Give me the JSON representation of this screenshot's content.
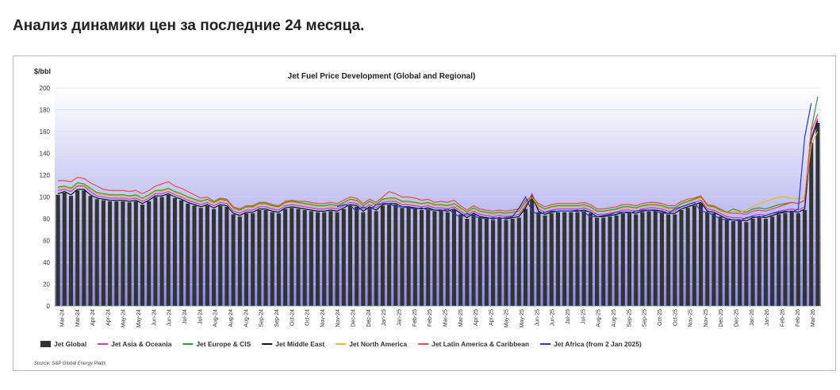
{
  "heading": "Анализ динамики цен за последние 24 месяца.",
  "source": "Source: S&P Global Energy Platts",
  "chart_data": {
    "type": "bar",
    "title": "Jet Fuel Price Development (Global and Regional)",
    "ylabel": "$/bbl",
    "xlabel": "",
    "ylim": [
      0,
      200
    ],
    "yticks": [
      0,
      20,
      40,
      60,
      80,
      100,
      120,
      140,
      160,
      180,
      200
    ],
    "grid": true,
    "legend_position": "bottom",
    "x_tick_labels": [
      "Mar-24",
      "Mar-24",
      "Apr-24",
      "Apr-24",
      "May-24",
      "May-24",
      "Jun-24",
      "Jun-24",
      "Jul-24",
      "Jul-24",
      "Aug-24",
      "Aug-24",
      "Aug-24",
      "Sep-24",
      "Sep-24",
      "Oct-24",
      "Oct-24",
      "Nov-24",
      "Nov-24",
      "Dec-24",
      "Dec-24",
      "Jan-25",
      "Jan-25",
      "Feb-25",
      "Feb-25",
      "Mar-25",
      "Mar-25",
      "Apr-25",
      "Apr-25",
      "May-25",
      "May-25",
      "Jun-25",
      "Jun-25",
      "Jul-25",
      "Jul-25",
      "Aug-25",
      "Aug-25",
      "Sep-25",
      "Sep-25",
      "Oct-25",
      "Oct-25",
      "Nov-25",
      "Nov-25",
      "Dec-25",
      "Dec-25",
      "Jan-26",
      "Jan-26",
      "Feb-26",
      "Feb-26",
      "Mar-26"
    ],
    "series": [
      {
        "name": "Jet Global",
        "kind": "bar",
        "color": "#333333",
        "values": [
          102,
          104,
          101,
          106,
          106,
          101,
          98,
          97,
          96,
          96,
          96,
          95,
          96,
          93,
          96,
          100,
          100,
          102,
          99,
          97,
          94,
          92,
          90,
          92,
          89,
          92,
          91,
          84,
          82,
          85,
          85,
          88,
          88,
          86,
          85,
          89,
          90,
          89,
          88,
          87,
          86,
          86,
          87,
          86,
          89,
          92,
          91,
          86,
          90,
          87,
          92,
          93,
          93,
          90,
          90,
          89,
          88,
          89,
          87,
          87,
          86,
          88,
          84,
          80,
          84,
          81,
          80,
          79,
          80,
          79,
          80,
          81,
          89,
          100,
          86,
          83,
          85,
          86,
          86,
          86,
          86,
          87,
          85,
          81,
          81,
          82,
          83,
          85,
          85,
          84,
          86,
          87,
          87,
          86,
          84,
          84,
          88,
          90,
          92,
          94,
          86,
          85,
          82,
          79,
          78,
          78,
          77,
          80,
          81,
          80,
          82,
          84,
          85,
          86,
          85,
          88,
          150,
          168
        ]
      },
      {
        "name": "Jet Asia & Oceania",
        "kind": "line",
        "color": "#c040c0",
        "values": [
          106,
          107,
          105,
          110,
          110,
          105,
          101,
          100,
          99,
          99,
          99,
          98,
          99,
          96,
          99,
          103,
          103,
          105,
          102,
          100,
          97,
          95,
          93,
          95,
          92,
          95,
          94,
          87,
          85,
          88,
          88,
          91,
          91,
          89,
          88,
          92,
          93,
          92,
          91,
          90,
          89,
          89,
          90,
          89,
          92,
          95,
          94,
          89,
          93,
          90,
          95,
          96,
          96,
          93,
          93,
          92,
          91,
          92,
          90,
          90,
          89,
          91,
          87,
          83,
          87,
          84,
          83,
          82,
          83,
          82,
          83,
          84,
          92,
          103,
          89,
          86,
          88,
          89,
          89,
          89,
          89,
          90,
          88,
          84,
          84,
          85,
          86,
          88,
          88,
          87,
          89,
          90,
          90,
          89,
          87,
          87,
          91,
          93,
          95,
          97,
          89,
          88,
          85,
          82,
          81,
          81,
          80,
          83,
          84,
          83,
          85,
          87,
          88,
          89,
          88,
          91,
          155,
          172
        ]
      },
      {
        "name": "Jet Europe & CIS",
        "kind": "line",
        "color": "#2e9a3a",
        "values": [
          109,
          110,
          108,
          113,
          112,
          108,
          104,
          103,
          102,
          102,
          102,
          101,
          102,
          99,
          102,
          106,
          106,
          108,
          105,
          103,
          100,
          98,
          96,
          98,
          95,
          98,
          97,
          90,
          88,
          91,
          91,
          94,
          94,
          92,
          91,
          95,
          96,
          95,
          94,
          93,
          92,
          92,
          93,
          92,
          95,
          98,
          97,
          92,
          96,
          93,
          98,
          99,
          99,
          96,
          96,
          95,
          94,
          95,
          93,
          93,
          92,
          94,
          90,
          86,
          90,
          87,
          86,
          85,
          86,
          85,
          86,
          87,
          95,
          101,
          92,
          89,
          91,
          92,
          92,
          92,
          92,
          93,
          91,
          87,
          87,
          88,
          89,
          91,
          91,
          90,
          92,
          93,
          93,
          92,
          90,
          90,
          94,
          96,
          98,
          100,
          92,
          91,
          88,
          86,
          89,
          87,
          86,
          89,
          90,
          89,
          91,
          93,
          94,
          95,
          94,
          97,
          162,
          192
        ]
      },
      {
        "name": "Jet Middle East",
        "kind": "line",
        "color": "#111111",
        "values": [
          103,
          105,
          102,
          107,
          107,
          102,
          99,
          98,
          97,
          97,
          97,
          96,
          97,
          94,
          97,
          101,
          101,
          103,
          100,
          98,
          95,
          93,
          91,
          93,
          90,
          93,
          92,
          85,
          83,
          86,
          86,
          89,
          89,
          87,
          86,
          90,
          91,
          90,
          89,
          88,
          87,
          87,
          88,
          87,
          90,
          93,
          92,
          87,
          91,
          88,
          93,
          94,
          94,
          91,
          91,
          90,
          89,
          90,
          88,
          88,
          87,
          89,
          85,
          81,
          85,
          82,
          81,
          80,
          81,
          80,
          81,
          82,
          90,
          101,
          87,
          84,
          86,
          87,
          87,
          87,
          87,
          88,
          86,
          82,
          82,
          83,
          84,
          86,
          86,
          85,
          87,
          88,
          88,
          87,
          85,
          85,
          89,
          91,
          93,
          95,
          87,
          86,
          83,
          80,
          79,
          79,
          78,
          81,
          82,
          81,
          83,
          85,
          86,
          87,
          86,
          89,
          152,
          170
        ]
      },
      {
        "name": "Jet North America",
        "kind": "line",
        "color": "#e8b830",
        "values": [
          108,
          109,
          107,
          111,
          111,
          107,
          103,
          102,
          101,
          101,
          101,
          100,
          101,
          98,
          101,
          105,
          105,
          107,
          104,
          102,
          99,
          97,
          95,
          97,
          94,
          97,
          96,
          89,
          87,
          90,
          90,
          93,
          93,
          91,
          90,
          94,
          95,
          94,
          93,
          92,
          91,
          91,
          92,
          91,
          94,
          97,
          96,
          91,
          95,
          92,
          97,
          98,
          98,
          95,
          95,
          94,
          93,
          94,
          92,
          92,
          91,
          93,
          89,
          85,
          89,
          86,
          85,
          84,
          85,
          84,
          85,
          86,
          94,
          100,
          91,
          88,
          90,
          91,
          91,
          91,
          91,
          92,
          90,
          86,
          86,
          87,
          88,
          90,
          90,
          89,
          91,
          92,
          92,
          91,
          89,
          89,
          93,
          95,
          97,
          99,
          91,
          90,
          87,
          84,
          87,
          86,
          88,
          91,
          94,
          96,
          98,
          100,
          100,
          99,
          98,
          100,
          148,
          160
        ]
      },
      {
        "name": "Jet Latin America & Caribbean",
        "kind": "line",
        "color": "#e05050",
        "values": [
          115,
          115,
          114,
          118,
          117,
          113,
          110,
          107,
          106,
          106,
          106,
          105,
          106,
          103,
          106,
          110,
          112,
          114,
          110,
          108,
          105,
          102,
          99,
          100,
          96,
          99,
          98,
          91,
          89,
          92,
          92,
          95,
          95,
          93,
          92,
          96,
          97,
          96,
          96,
          95,
          94,
          94,
          95,
          94,
          97,
          100,
          99,
          94,
          98,
          95,
          100,
          105,
          103,
          100,
          100,
          99,
          97,
          98,
          95,
          96,
          95,
          97,
          92,
          88,
          92,
          89,
          88,
          87,
          88,
          87,
          88,
          89,
          97,
          100,
          94,
          91,
          93,
          94,
          94,
          94,
          94,
          95,
          93,
          89,
          89,
          90,
          91,
          93,
          93,
          92,
          94,
          95,
          95,
          94,
          92,
          92,
          96,
          98,
          99,
          101,
          93,
          92,
          89,
          86,
          85,
          85,
          84,
          87,
          88,
          87,
          89,
          91,
          93,
          95,
          94,
          97,
          160,
          176
        ]
      },
      {
        "name": "Jet Africa (from 2 Jan 2025)",
        "kind": "line",
        "color": "#2838c8",
        "start_index": 43,
        "values": [
          91,
          93,
          92,
          87,
          91,
          88,
          93,
          94,
          94,
          91,
          91,
          90,
          89,
          90,
          88,
          88,
          87,
          89,
          85,
          81,
          85,
          82,
          81,
          80,
          81,
          80,
          81,
          82,
          90,
          100,
          87,
          84,
          86,
          87,
          87,
          87,
          87,
          88,
          86,
          82,
          82,
          83,
          84,
          86,
          86,
          85,
          87,
          88,
          88,
          87,
          85,
          85,
          89,
          91,
          93,
          95,
          87,
          86,
          83,
          80,
          79,
          79,
          78,
          81,
          82,
          81,
          83,
          85,
          86,
          87,
          86,
          89,
          155,
          186
        ]
      }
    ]
  },
  "colors": {
    "plot_bg_top": "#ffffff",
    "plot_bg_bottom": "#8c8ce6",
    "grid": "#d6d6e6"
  }
}
